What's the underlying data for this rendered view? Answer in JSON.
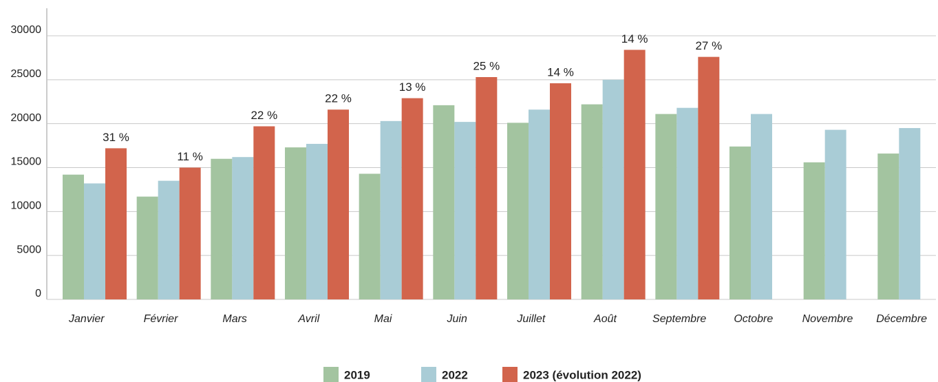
{
  "chart_data": {
    "type": "bar",
    "categories": [
      "Janvier",
      "Février",
      "Mars",
      "Avril",
      "Mai",
      "Juin",
      "Juillet",
      "Août",
      "Septembre",
      "Octobre",
      "Novembre",
      "Décembre"
    ],
    "series": [
      {
        "name": "2019",
        "color": "#a3c4a0",
        "values": [
          14200,
          11700,
          16000,
          17300,
          14300,
          22100,
          20100,
          22200,
          21100,
          17400,
          15600,
          16600
        ]
      },
      {
        "name": "2022",
        "color": "#a9ccd6",
        "values": [
          13200,
          13500,
          16200,
          17700,
          20300,
          20200,
          21600,
          25000,
          21800,
          21100,
          19300,
          19500
        ]
      },
      {
        "name": "2023 (évolution 2022)",
        "color": "#d2644c",
        "values": [
          17200,
          15000,
          19700,
          21600,
          22900,
          25300,
          24600,
          28400,
          27600,
          null,
          null,
          null
        ],
        "evolution_labels": [
          "31 %",
          "11 %",
          "22 %",
          "22 %",
          "13 %",
          "25 %",
          "14 %",
          "14 %",
          "27 %",
          null,
          null,
          null
        ]
      }
    ],
    "ylim": [
      0,
      30000
    ],
    "yticks": [
      0,
      5000,
      10000,
      15000,
      20000,
      25000,
      30000
    ],
    "grid": true,
    "legend": "bottom"
  }
}
